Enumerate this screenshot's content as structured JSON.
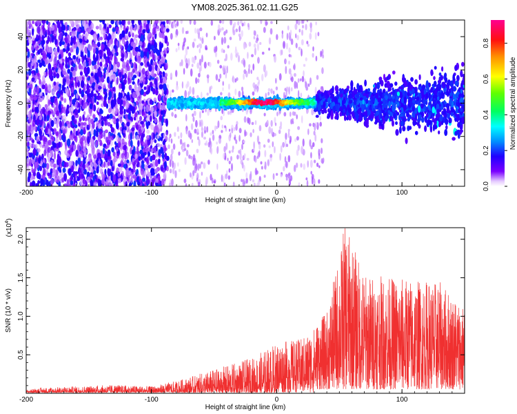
{
  "title": "YM08.2025.361.02.11.G25",
  "chart_data": [
    {
      "type": "heatmap",
      "xlabel": "Height of straight line (km)",
      "ylabel": "Frequency (Hz)",
      "xlim": [
        -200,
        150
      ],
      "ylim": [
        -50,
        50
      ],
      "x_ticks": [
        -200,
        -100,
        0,
        100
      ],
      "x_tick_labels": [
        "-200",
        "-100",
        "0",
        "100"
      ],
      "y_ticks": [
        -40,
        -20,
        0,
        20,
        40
      ],
      "y_tick_labels": [
        "-40",
        "-20",
        "0",
        "20",
        "40"
      ],
      "colorbar": {
        "label": "Normalized spectral amplitude",
        "range": [
          0.0,
          0.93
        ],
        "ticks": [
          0.0,
          0.2,
          0.4,
          0.6,
          0.8
        ],
        "tick_labels": [
          "0.0",
          "0.2",
          "0.4",
          "0.6",
          "0.8"
        ],
        "colormap": "rainbow"
      },
      "regions": [
        {
          "x_range": [
            -200,
            -87
          ],
          "freq_range": [
            -50,
            50
          ],
          "amplitude": 0.1
        },
        {
          "x_range": [
            -87,
            30
          ],
          "freq_range": [
            -8,
            8
          ],
          "amplitude": 0.3
        },
        {
          "x_range": [
            -40,
            25
          ],
          "freq_range": [
            -3,
            4
          ],
          "amplitude": 0.85
        },
        {
          "x_range": [
            30,
            150
          ],
          "freq_range": [
            -30,
            30
          ],
          "amplitude": 0.12
        }
      ]
    },
    {
      "type": "line",
      "xlabel": "Height of straight line (km)",
      "ylabel": "SNR (10 * v/v)",
      "y_multiplier": "(x10",
      "y_multiplier_exp": "4",
      "y_multiplier_close": ")",
      "xlim": [
        -200,
        150
      ],
      "ylim": [
        0,
        2.15
      ],
      "x_ticks": [
        -200,
        -100,
        0,
        100
      ],
      "x_tick_labels": [
        "-200",
        "-100",
        "0",
        "100"
      ],
      "y_ticks": [
        0.5,
        1.0,
        1.5,
        2.0
      ],
      "y_tick_labels": [
        "0.5",
        "1.0",
        "1.5",
        "2.0"
      ],
      "line_color": "#f03030",
      "envelope": [
        {
          "x": -200,
          "y": 0.03
        },
        {
          "x": -190,
          "y": 0.06
        },
        {
          "x": -160,
          "y": 0.08
        },
        {
          "x": -130,
          "y": 0.1
        },
        {
          "x": -100,
          "y": 0.08
        },
        {
          "x": -80,
          "y": 0.15
        },
        {
          "x": -60,
          "y": 0.25
        },
        {
          "x": -40,
          "y": 0.35
        },
        {
          "x": -20,
          "y": 0.45
        },
        {
          "x": 0,
          "y": 0.65
        },
        {
          "x": 20,
          "y": 0.7
        },
        {
          "x": 40,
          "y": 1.0
        },
        {
          "x": 55,
          "y": 2.13
        },
        {
          "x": 70,
          "y": 1.5
        },
        {
          "x": 100,
          "y": 1.45
        },
        {
          "x": 130,
          "y": 1.4
        },
        {
          "x": 150,
          "y": 1.1
        }
      ]
    }
  ]
}
